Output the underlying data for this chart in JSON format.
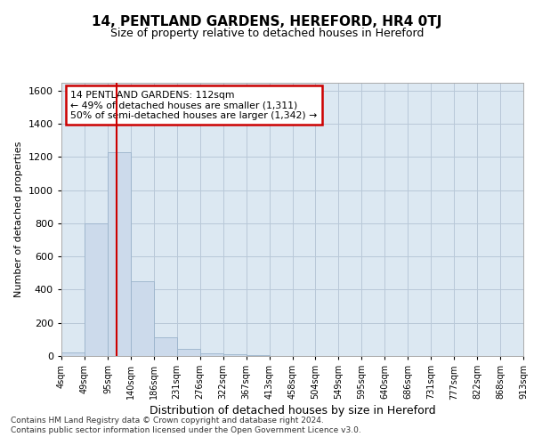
{
  "title1": "14, PENTLAND GARDENS, HEREFORD, HR4 0TJ",
  "title2": "Size of property relative to detached houses in Hereford",
  "xlabel": "Distribution of detached houses by size in Hereford",
  "ylabel": "Number of detached properties",
  "footnote": "Contains HM Land Registry data © Crown copyright and database right 2024.\nContains public sector information licensed under the Open Government Licence v3.0.",
  "bin_labels": [
    "4sqm",
    "49sqm",
    "95sqm",
    "140sqm",
    "186sqm",
    "231sqm",
    "276sqm",
    "322sqm",
    "367sqm",
    "413sqm",
    "458sqm",
    "504sqm",
    "549sqm",
    "595sqm",
    "640sqm",
    "686sqm",
    "731sqm",
    "777sqm",
    "822sqm",
    "868sqm",
    "913sqm"
  ],
  "bar_values": [
    20,
    800,
    1230,
    450,
    115,
    45,
    15,
    10,
    5,
    0,
    0,
    0,
    0,
    0,
    0,
    0,
    0,
    0,
    0,
    0
  ],
  "bar_color": "#ccdaeb",
  "bar_edge_color": "#9ab3cb",
  "red_line_x": 2.38,
  "ylim": [
    0,
    1650
  ],
  "yticks": [
    0,
    200,
    400,
    600,
    800,
    1000,
    1200,
    1400,
    1600
  ],
  "annotation_text": "14 PENTLAND GARDENS: 112sqm\n← 49% of detached houses are smaller (1,311)\n50% of semi-detached houses are larger (1,342) →",
  "annotation_box_facecolor": "#ffffff",
  "annotation_box_edgecolor": "#cc0000",
  "grid_color": "#b8c8d8",
  "background_color": "#dce8f2",
  "title1_fontsize": 11,
  "title2_fontsize": 9,
  "ylabel_fontsize": 8,
  "xlabel_fontsize": 9
}
